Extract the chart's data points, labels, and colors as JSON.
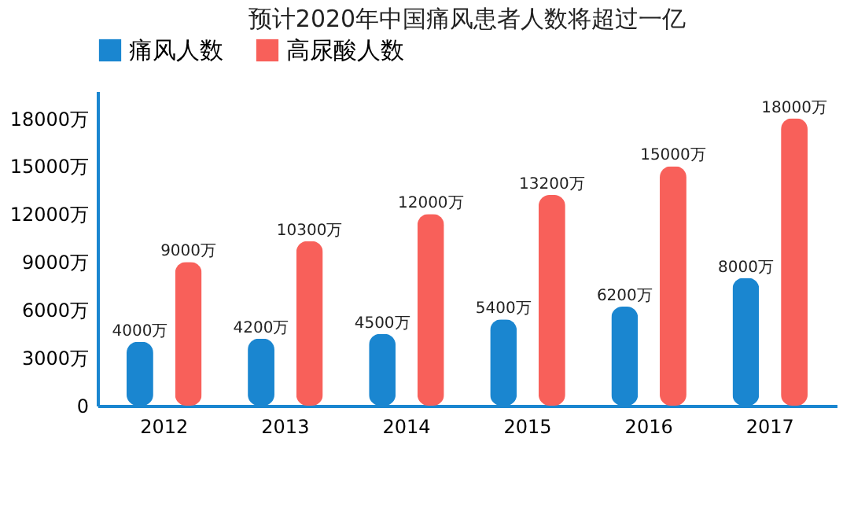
{
  "chart_data": {
    "type": "bar",
    "title": "预计2020年中国痛风患者人数将超过一亿",
    "categories": [
      "2012",
      "2013",
      "2014",
      "2015",
      "2016",
      "2017"
    ],
    "series": [
      {
        "name": "痛风人数",
        "color": "#1a86d0",
        "values": [
          4000,
          4200,
          4500,
          5400,
          6200,
          8000
        ],
        "value_labels": [
          "4000万",
          "4200万",
          "4500万",
          "5400万",
          "6200万",
          "8000万"
        ]
      },
      {
        "name": "高尿酸人数",
        "color": "#f8605a",
        "values": [
          9000,
          10300,
          12000,
          13200,
          15000,
          18000
        ],
        "value_labels": [
          "9000万",
          "10300万",
          "12000万",
          "13200万",
          "15000万",
          "18000万"
        ]
      }
    ],
    "ylim": [
      0,
      19700
    ],
    "yticks": [
      0,
      {
        "value": 3000,
        "label": "3000万"
      },
      {
        "value": 6000,
        "label": "6000万"
      },
      {
        "value": 9000,
        "label": "9000万"
      },
      {
        "value": 12000,
        "label": "12000万"
      },
      {
        "value": 15000,
        "label": "15000万"
      },
      {
        "value": 18000,
        "label": "18000万"
      }
    ],
    "grid": false,
    "legend": "top"
  }
}
